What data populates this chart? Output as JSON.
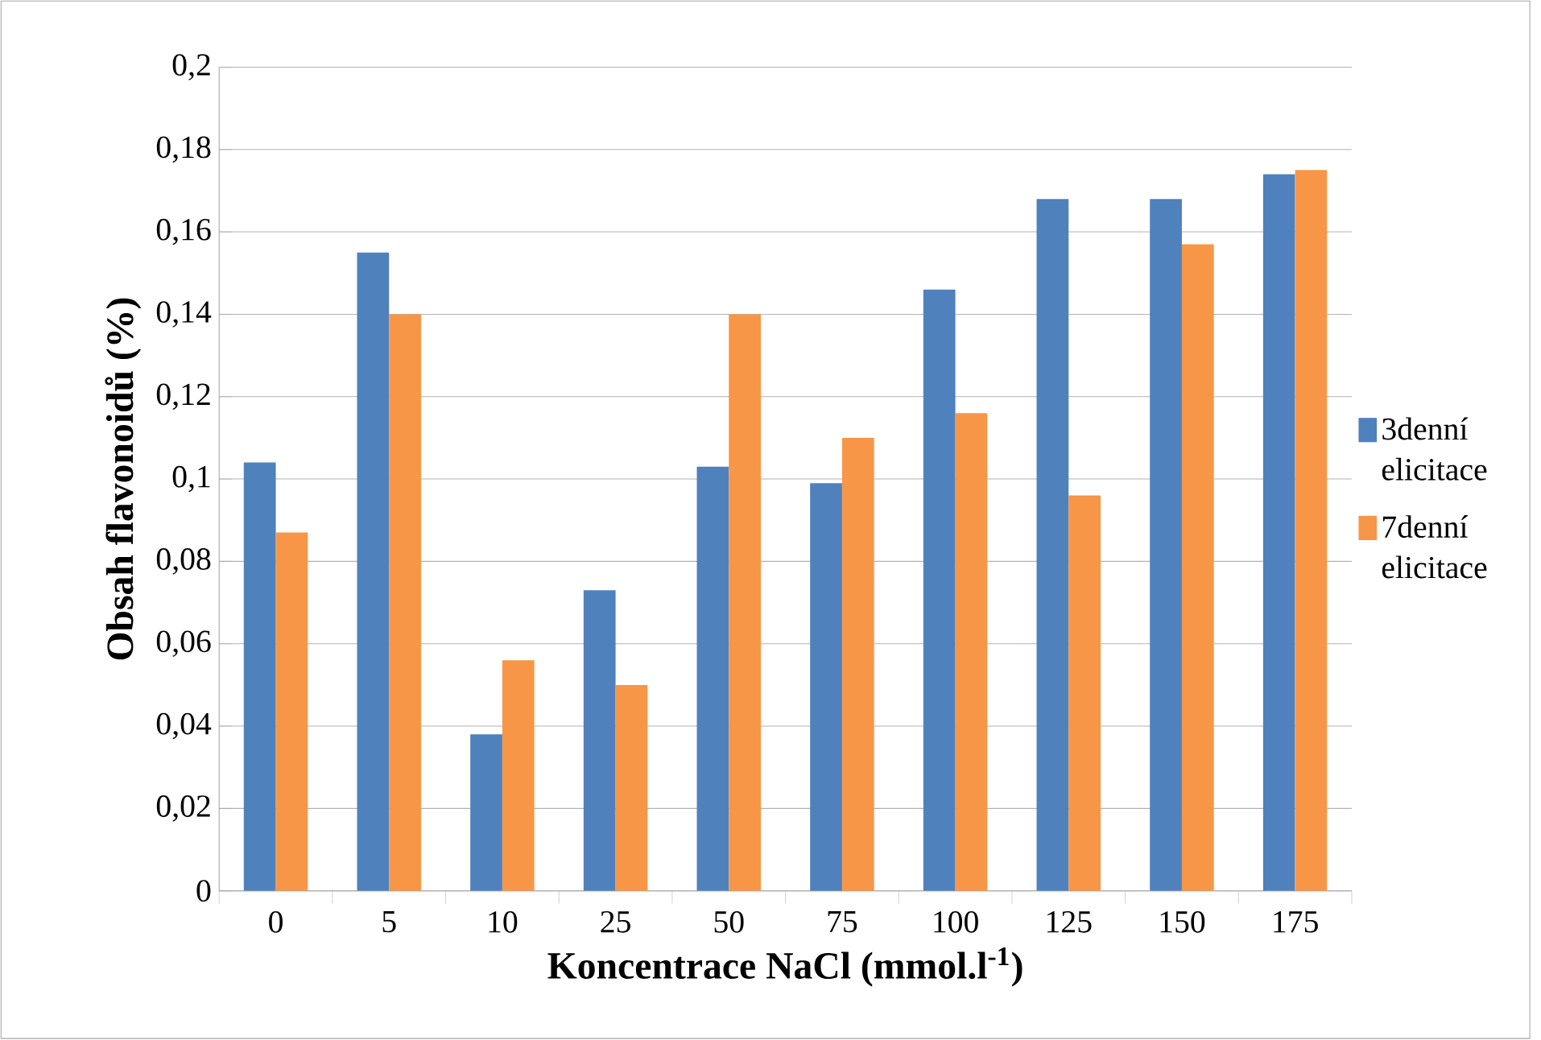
{
  "chart_data": {
    "type": "bar",
    "xlabel": "Koncentrace NaCl (mmol.l$^{-1}$)",
    "ylabel": "Obsah flavonoidů (%)",
    "categories": [
      "0",
      "5",
      "10",
      "25",
      "50",
      "75",
      "100",
      "125",
      "150",
      "175"
    ],
    "series": [
      {
        "name": "3denní elicitace",
        "color": "#4f81bd",
        "values": [
          0.104,
          0.155,
          0.038,
          0.073,
          0.103,
          0.099,
          0.146,
          0.168,
          0.168,
          0.174
        ]
      },
      {
        "name": "7denní elicitace",
        "color": "#f79646",
        "values": [
          0.087,
          0.14,
          0.056,
          0.05,
          0.14,
          0.11,
          0.116,
          0.096,
          0.157,
          0.175
        ]
      }
    ],
    "ylim": [
      0,
      0.2
    ],
    "yticks": [
      0,
      {
        "value": 0.02,
        "label": "0,02"
      },
      {
        "value": 0.04,
        "label": "0,04"
      },
      {
        "value": 0.06,
        "label": "0,06"
      },
      {
        "value": 0.08,
        "label": "0,08"
      },
      {
        "value": 0.1,
        "label": "0,1"
      },
      {
        "value": 0.12,
        "label": "0,12"
      },
      {
        "value": 0.14,
        "label": "0,14"
      },
      {
        "value": 0.16,
        "label": "0,16"
      },
      {
        "value": 0.18,
        "label": "0,18"
      },
      {
        "value": 0.2,
        "label": "0,2"
      }
    ],
    "grid": "y",
    "legend": "right"
  }
}
